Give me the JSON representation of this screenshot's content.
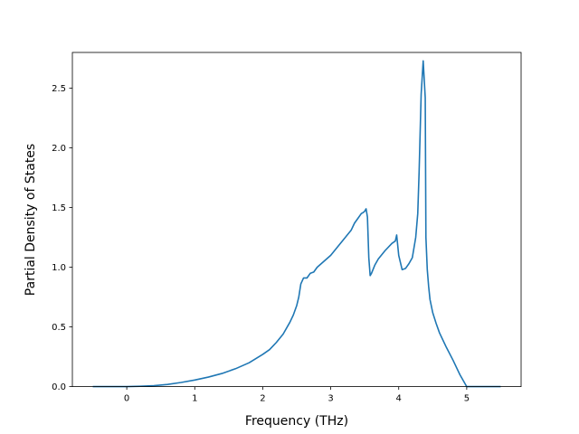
{
  "chart_data": {
    "type": "line",
    "xlabel": "Frequency (THz)",
    "ylabel": "Partial Density of States",
    "xlim": [
      -0.8,
      5.8
    ],
    "ylim": [
      0.0,
      2.8
    ],
    "xticks": [
      0,
      1,
      2,
      3,
      4,
      5
    ],
    "yticks": [
      0.0,
      0.5,
      1.0,
      1.5,
      2.0,
      2.5
    ],
    "xtick_labels": [
      "0",
      "1",
      "2",
      "3",
      "4",
      "5"
    ],
    "ytick_labels": [
      "0.0",
      "0.5",
      "1.0",
      "1.5",
      "2.0",
      "2.5"
    ],
    "grid": false,
    "line_color": "#1f77b4",
    "series": [
      {
        "x": [
          -0.5,
          -0.2,
          0.0,
          0.2,
          0.4,
          0.6,
          0.8,
          1.0,
          1.2,
          1.4,
          1.6,
          1.8,
          2.0,
          2.1,
          2.2,
          2.3,
          2.4,
          2.45,
          2.5,
          2.53,
          2.56,
          2.6,
          2.65,
          2.7,
          2.75,
          2.8,
          2.9,
          3.0,
          3.1,
          3.2,
          3.3,
          3.35,
          3.4,
          3.45,
          3.48,
          3.5,
          3.52,
          3.54,
          3.56,
          3.58,
          3.6,
          3.65,
          3.7,
          3.8,
          3.9,
          3.95,
          3.97,
          4.0,
          4.05,
          4.1,
          4.15,
          4.2,
          4.25,
          4.28,
          4.3,
          4.33,
          4.36,
          4.39,
          4.4,
          4.42,
          4.44,
          4.46,
          4.5,
          4.55,
          4.6,
          4.7,
          4.8,
          4.9,
          4.95,
          5.0,
          5.05,
          5.5
        ],
        "y": [
          0.0,
          0.0,
          0.0,
          0.003,
          0.008,
          0.018,
          0.035,
          0.055,
          0.08,
          0.11,
          0.15,
          0.2,
          0.27,
          0.31,
          0.37,
          0.44,
          0.54,
          0.6,
          0.68,
          0.75,
          0.86,
          0.91,
          0.91,
          0.95,
          0.96,
          1.0,
          1.05,
          1.1,
          1.17,
          1.24,
          1.31,
          1.37,
          1.41,
          1.45,
          1.46,
          1.47,
          1.49,
          1.42,
          1.08,
          0.93,
          0.95,
          1.02,
          1.07,
          1.14,
          1.2,
          1.22,
          1.27,
          1.1,
          0.98,
          0.99,
          1.03,
          1.08,
          1.25,
          1.45,
          1.8,
          2.45,
          2.73,
          2.42,
          1.25,
          0.98,
          0.84,
          0.73,
          0.62,
          0.53,
          0.45,
          0.33,
          0.22,
          0.1,
          0.05,
          0.0,
          0.0,
          0.0
        ]
      }
    ]
  }
}
